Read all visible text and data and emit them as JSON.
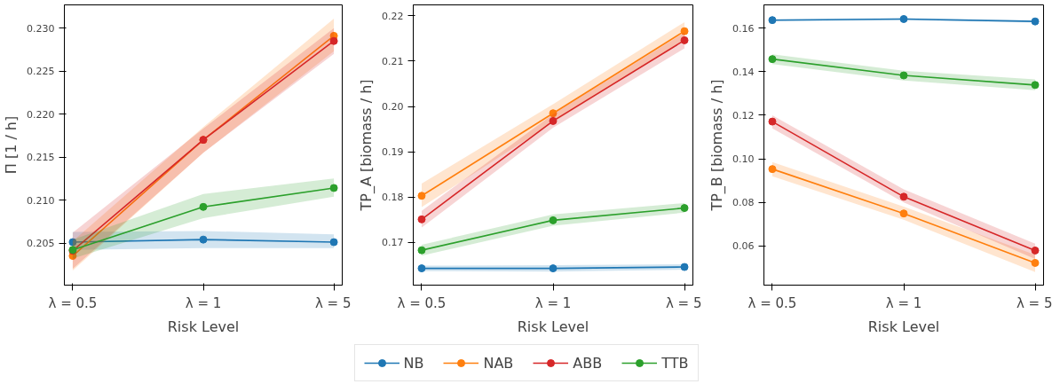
{
  "chart_data": [
    {
      "type": "line",
      "xlabel": "Risk Level",
      "ylabel": "Π [1 / h]",
      "categories": [
        "λ = 0.5",
        "λ = 1",
        "λ = 5"
      ],
      "ylim": [
        0.2001,
        0.2327
      ],
      "yticks": [
        {
          "value": 0.205,
          "label": "0.205"
        },
        {
          "value": 0.21,
          "label": "0.210"
        },
        {
          "value": 0.215,
          "label": "0.215"
        },
        {
          "value": 0.22,
          "label": "0.220"
        },
        {
          "value": 0.225,
          "label": "0.225"
        },
        {
          "value": 0.23,
          "label": "0.230"
        }
      ],
      "grid": false,
      "legend": false,
      "marker": "circle",
      "line_style": "solid",
      "series": [
        {
          "color": "#1f77b4",
          "values": [
            0.2051,
            0.2054,
            0.2051
          ],
          "lower": [
            0.2042,
            0.2044,
            0.2044
          ],
          "upper": [
            0.2063,
            0.2064,
            0.206
          ]
        },
        {
          "color": "#ff7f0e",
          "values": [
            0.2035,
            0.217,
            0.2291
          ],
          "lower": [
            0.2018,
            0.2155,
            0.2273
          ],
          "upper": [
            0.2052,
            0.2185,
            0.2311
          ]
        },
        {
          "color": "#d62728",
          "values": [
            0.2041,
            0.217,
            0.2285
          ],
          "lower": [
            0.202,
            0.2155,
            0.227
          ],
          "upper": [
            0.2062,
            0.2183,
            0.23
          ]
        },
        {
          "color": "#2ca02c",
          "values": [
            0.2042,
            0.2092,
            0.2114
          ],
          "lower": [
            0.2032,
            0.2079,
            0.2104
          ],
          "upper": [
            0.2054,
            0.2107,
            0.2125
          ]
        }
      ]
    },
    {
      "type": "line",
      "xlabel": "Risk Level",
      "ylabel": "TP_A [biomass / h]",
      "categories": [
        "λ = 0.5",
        "λ = 1",
        "λ = 5"
      ],
      "ylim": [
        0.1606,
        0.2224
      ],
      "yticks": [
        {
          "value": 0.17,
          "label": "0.17"
        },
        {
          "value": 0.18,
          "label": "0.18"
        },
        {
          "value": 0.19,
          "label": "0.19"
        },
        {
          "value": 0.2,
          "label": "0.20"
        },
        {
          "value": 0.21,
          "label": "0.21"
        },
        {
          "value": 0.22,
          "label": "0.22"
        }
      ],
      "grid": false,
      "legend": "bottom",
      "marker": "circle",
      "line_style": "solid",
      "series": [
        {
          "name": "NB",
          "color": "#1f77b4",
          "values": [
            0.1643,
            0.1643,
            0.1646
          ],
          "lower": [
            0.1637,
            0.1636,
            0.164
          ],
          "upper": [
            0.1649,
            0.165,
            0.1652
          ]
        },
        {
          "name": "NAB",
          "color": "#ff7f0e",
          "values": [
            0.1803,
            0.1985,
            0.2166
          ],
          "lower": [
            0.1778,
            0.1965,
            0.2146
          ],
          "upper": [
            0.183,
            0.2005,
            0.2186
          ]
        },
        {
          "name": "ABB",
          "color": "#d62728",
          "values": [
            0.1751,
            0.1968,
            0.2146
          ],
          "lower": [
            0.1733,
            0.1953,
            0.2128
          ],
          "upper": [
            0.177,
            0.1983,
            0.2163
          ]
        },
        {
          "name": "TTB",
          "color": "#2ca02c",
          "values": [
            0.1683,
            0.1749,
            0.1776
          ],
          "lower": [
            0.1671,
            0.1737,
            0.1766
          ],
          "upper": [
            0.1695,
            0.1762,
            0.1787
          ]
        }
      ]
    },
    {
      "type": "line",
      "xlabel": "Risk Level",
      "ylabel": "TP_B [biomass / h]",
      "categories": [
        "λ = 0.5",
        "λ = 1",
        "λ = 5"
      ],
      "ylim": [
        0.042,
        0.1707
      ],
      "yticks": [
        {
          "value": 0.06,
          "label": "0.06"
        },
        {
          "value": 0.08,
          "label": "0.08"
        },
        {
          "value": 0.1,
          "label": "0.10"
        },
        {
          "value": 0.12,
          "label": "0.12"
        },
        {
          "value": 0.14,
          "label": "0.14"
        },
        {
          "value": 0.16,
          "label": "0.16"
        }
      ],
      "grid": false,
      "legend": false,
      "marker": "circle",
      "line_style": "solid",
      "series": [
        {
          "color": "#1f77b4",
          "values": [
            0.1637,
            0.1642,
            0.1631
          ],
          "lower": [
            0.1632,
            0.1637,
            0.1626
          ],
          "upper": [
            0.1642,
            0.1647,
            0.1636
          ]
        },
        {
          "color": "#ff7f0e",
          "values": [
            0.0953,
            0.0749,
            0.0522
          ],
          "lower": [
            0.092,
            0.072,
            0.048
          ],
          "upper": [
            0.0985,
            0.078,
            0.056
          ]
        },
        {
          "color": "#d62728",
          "values": [
            0.1171,
            0.0826,
            0.0579
          ],
          "lower": [
            0.114,
            0.08,
            0.054
          ],
          "upper": [
            0.12,
            0.086,
            0.061
          ]
        },
        {
          "color": "#2ca02c",
          "values": [
            0.1458,
            0.1383,
            0.1339
          ],
          "lower": [
            0.1435,
            0.136,
            0.1315
          ],
          "upper": [
            0.148,
            0.1405,
            0.1365
          ]
        }
      ]
    }
  ]
}
